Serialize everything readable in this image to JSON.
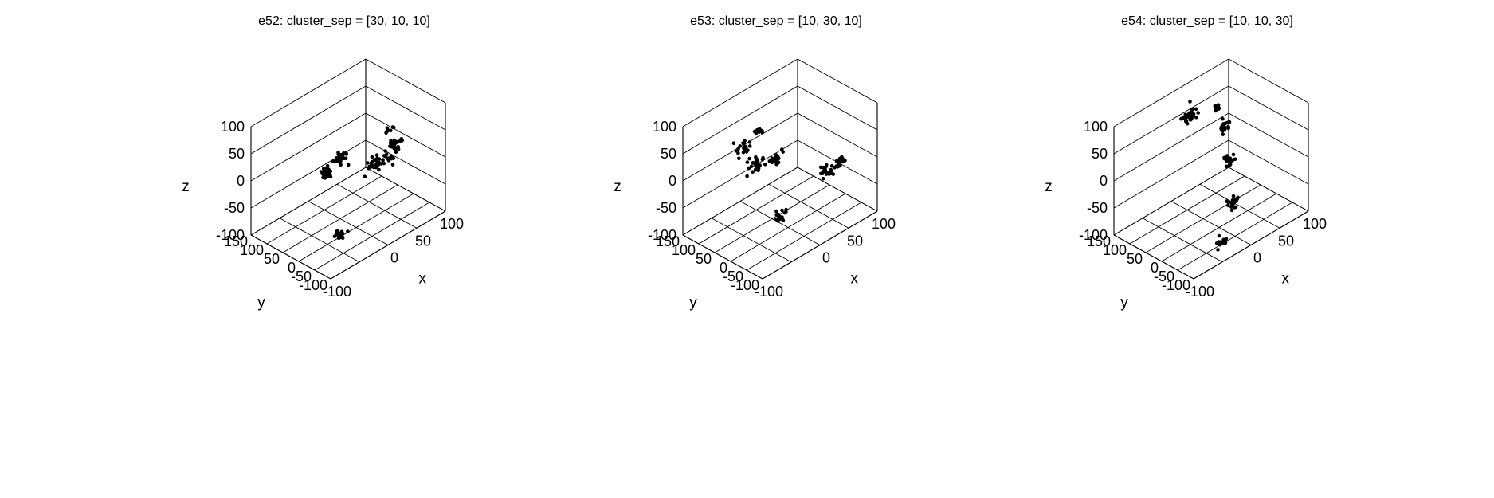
{
  "chart_data": [
    {
      "type": "scatter3d",
      "title": "e52: cluster_sep = [30, 10, 10]",
      "xlabel": "x",
      "ylabel": "y",
      "zlabel": "z",
      "xlim": [
        -100,
        100
      ],
      "ylim": [
        -100,
        150
      ],
      "zlim": [
        -100,
        100
      ],
      "xticks": [
        "-100",
        "0",
        "50",
        "100"
      ],
      "yticks": [
        "-100",
        "-50",
        "0",
        "50",
        "100",
        "150"
      ],
      "zticks": [
        "-100",
        "-50",
        "0",
        "50",
        "100"
      ],
      "grid": true,
      "marker_color": "#000000",
      "clusters": [
        {
          "x": -60,
          "y": -55,
          "z": -60,
          "n": 22,
          "spread": 5
        },
        {
          "x": -20,
          "y": 50,
          "z": 0,
          "n": 26,
          "spread": 6
        },
        {
          "x": 5,
          "y": 55,
          "z": 10,
          "n": 26,
          "spread": 6
        },
        {
          "x": 35,
          "y": 5,
          "z": -5,
          "n": 24,
          "spread": 6
        },
        {
          "x": 60,
          "y": 10,
          "z": -15,
          "n": 16,
          "spread": 5
        },
        {
          "x": 75,
          "y": 15,
          "z": 0,
          "n": 26,
          "spread": 6
        },
        {
          "x": 85,
          "y": 50,
          "z": 10,
          "n": 8,
          "spread": 3
        }
      ]
    },
    {
      "type": "scatter3d",
      "title": "e53: cluster_sep = [10, 30, 10]",
      "xlabel": "x",
      "ylabel": "y",
      "zlabel": "z",
      "xlim": [
        -100,
        100
      ],
      "ylim": [
        -100,
        150
      ],
      "zlim": [
        -100,
        100
      ],
      "xticks": [
        "-100",
        "0",
        "50",
        "100"
      ],
      "yticks": [
        "-100",
        "-50",
        "0",
        "50",
        "100",
        "150"
      ],
      "zticks": [
        "-100",
        "-50",
        "0",
        "50",
        "100"
      ],
      "grid": true,
      "marker_color": "#000000",
      "clusters": [
        {
          "x": -40,
          "y": 70,
          "z": 50,
          "n": 24,
          "spread": 6
        },
        {
          "x": -5,
          "y": 80,
          "z": 55,
          "n": 8,
          "spread": 3
        },
        {
          "x": -25,
          "y": 55,
          "z": 15,
          "n": 28,
          "spread": 6
        },
        {
          "x": 5,
          "y": 50,
          "z": 5,
          "n": 20,
          "spread": 5
        },
        {
          "x": 55,
          "y": -20,
          "z": -25,
          "n": 18,
          "spread": 5
        },
        {
          "x": 80,
          "y": -15,
          "z": -25,
          "n": 22,
          "spread": 5
        },
        {
          "x": -30,
          "y": -30,
          "z": -50,
          "n": 18,
          "spread": 5
        }
      ]
    },
    {
      "type": "scatter3d",
      "title": "e54: cluster_sep = [10, 10, 30]",
      "xlabel": "x",
      "ylabel": "y",
      "zlabel": "z",
      "xlim": [
        -100,
        100
      ],
      "ylim": [
        -100,
        150
      ],
      "zlim": [
        -100,
        100
      ],
      "xticks": [
        "-100",
        "0",
        "50",
        "100"
      ],
      "yticks": [
        "-100",
        "-50",
        "0",
        "50",
        "100",
        "150"
      ],
      "zticks": [
        "-100",
        "-50",
        "0",
        "50",
        "100"
      ],
      "grid": true,
      "marker_color": "#000000",
      "clusters": [
        {
          "x": -10,
          "y": 75,
          "z": 90,
          "n": 34,
          "spread": 6
        },
        {
          "x": 40,
          "y": 80,
          "z": 70,
          "n": 10,
          "spread": 3
        },
        {
          "x": 30,
          "y": 40,
          "z": 55,
          "n": 22,
          "spread": 5
        },
        {
          "x": 30,
          "y": 20,
          "z": 0,
          "n": 22,
          "spread": 5
        },
        {
          "x": 15,
          "y": -15,
          "z": -60,
          "n": 24,
          "spread": 5
        },
        {
          "x": -30,
          "y": -60,
          "z": -90,
          "n": 16,
          "spread": 5
        }
      ]
    }
  ]
}
